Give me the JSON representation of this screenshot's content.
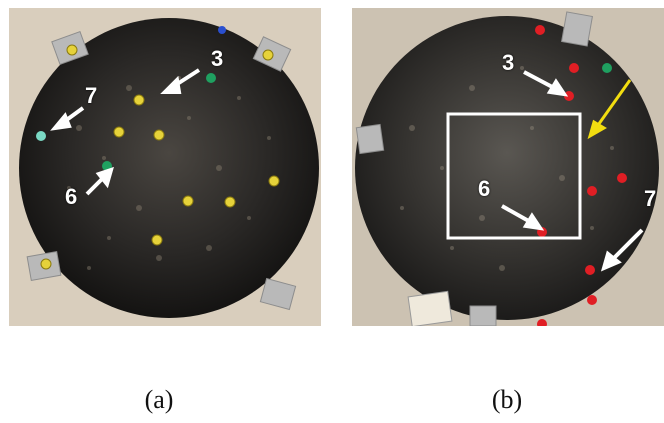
{
  "panels": [
    {
      "caption": "(a)",
      "labels": {
        "three": "3",
        "seven": "7",
        "six": "6"
      },
      "marker_colors": {
        "yellow": "#e6d23a",
        "green": "#1fa060",
        "blue": "#2a4fcf",
        "teal": "#7ad9c4"
      }
    },
    {
      "caption": "(b)",
      "labels": {
        "three": "3",
        "six": "6",
        "seven": "7"
      },
      "marker_colors": {
        "red": "#e01e24",
        "green": "#1fa060",
        "yellow_arrow": "#f2dd10",
        "box": "#ffffff"
      }
    }
  ]
}
